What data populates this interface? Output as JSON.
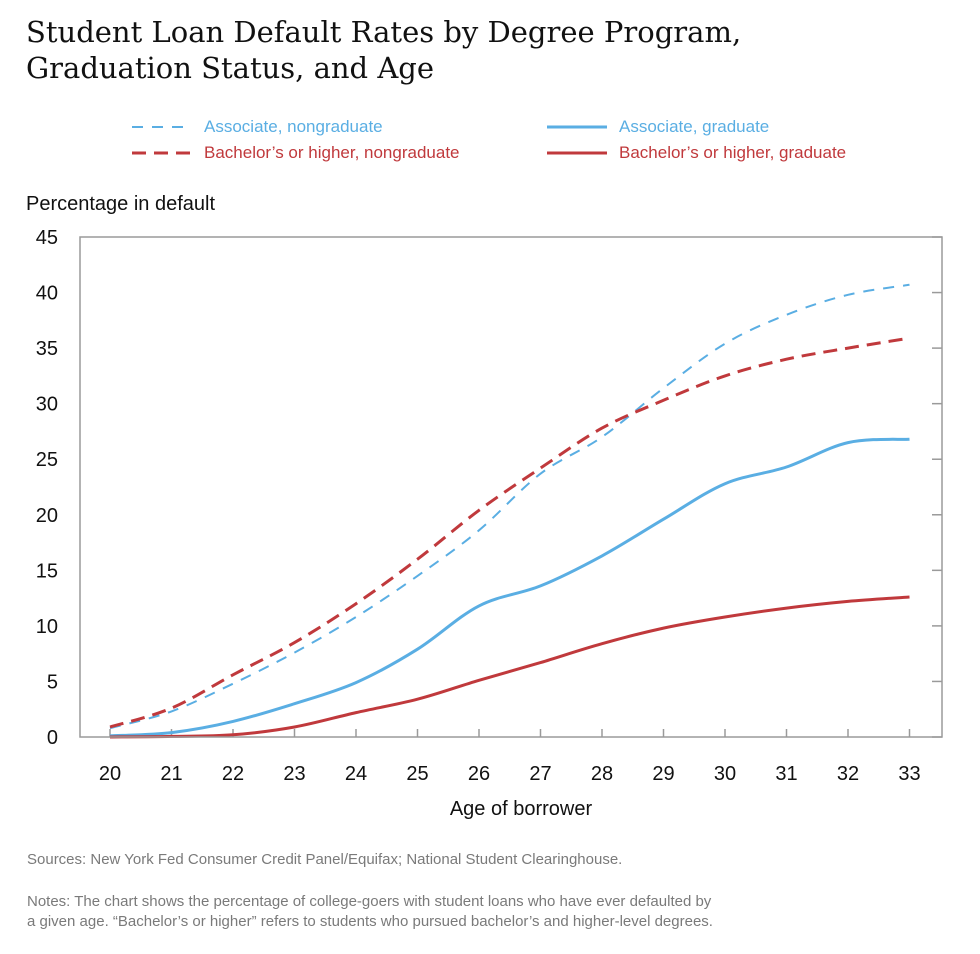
{
  "title_lines": [
    "Student Loan Default Rates by Degree Program,",
    "Graduation Status, and Age"
  ],
  "sources": "Sources: New York Fed Consumer Credit Panel/Equifax; National Student Clearinghouse.",
  "notes_lines": [
    "Notes: The chart shows the percentage of college-goers with student loans who have ever defaulted by",
    "a given age. “Bachelor’s or higher” refers to students who pursued bachelor’s and higher-level degrees."
  ],
  "chart_data": {
    "type": "line",
    "xlabel": "Age of borrower",
    "ylabel": "Percentage in default",
    "x": [
      20,
      21,
      22,
      23,
      24,
      25,
      26,
      27,
      28,
      29,
      30,
      31,
      32,
      33
    ],
    "ylim": [
      0,
      45
    ],
    "yticks": [
      0,
      5,
      10,
      15,
      20,
      25,
      30,
      35,
      40,
      45
    ],
    "grid": false,
    "legend_position": "top",
    "series": [
      {
        "name": "Associate, nongraduate",
        "color": "#5aaee3",
        "dash": "short-dash",
        "values": [
          0.8,
          2.3,
          4.8,
          7.6,
          10.8,
          14.5,
          18.6,
          23.7,
          27.0,
          31.4,
          35.4,
          38.0,
          39.8,
          40.7
        ]
      },
      {
        "name": "Associate, graduate",
        "color": "#5aaee3",
        "dash": "solid",
        "values": [
          0.1,
          0.4,
          1.4,
          3.0,
          4.9,
          7.9,
          11.8,
          13.6,
          16.3,
          19.6,
          22.8,
          24.3,
          26.5,
          26.8
        ]
      },
      {
        "name": "Bachelor’s or higher, nongraduate",
        "color": "#c0393c",
        "dash": "long-dash",
        "values": [
          0.9,
          2.6,
          5.6,
          8.5,
          12.0,
          16.0,
          20.4,
          24.2,
          27.8,
          30.3,
          32.5,
          34.0,
          35.0,
          35.9
        ]
      },
      {
        "name": "Bachelor’s or higher, graduate",
        "color": "#c0393c",
        "dash": "solid",
        "values": [
          0.0,
          0.05,
          0.2,
          0.9,
          2.2,
          3.4,
          5.1,
          6.7,
          8.4,
          9.8,
          10.8,
          11.6,
          12.2,
          12.6
        ]
      }
    ]
  }
}
